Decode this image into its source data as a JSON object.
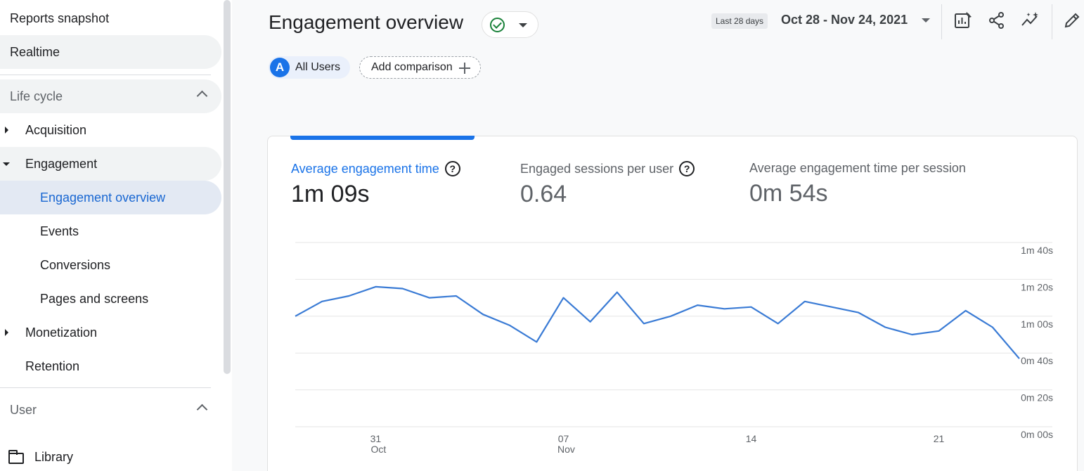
{
  "sidebar": {
    "reports_snapshot": "Reports snapshot",
    "realtime": "Realtime",
    "lifecycle": {
      "title": "Life cycle",
      "acquisition": "Acquisition",
      "engagement": "Engagement",
      "engagement_children": {
        "overview": "Engagement overview",
        "events": "Events",
        "conversions": "Conversions",
        "pages": "Pages and screens"
      },
      "monetization": "Monetization",
      "retention": "Retention"
    },
    "user": {
      "title": "User"
    },
    "library": "Library"
  },
  "header": {
    "title": "Engagement overview",
    "range_badge": "Last 28 days",
    "date_range": "Oct 28 - Nov 24, 2021",
    "status_icon": "check-circle-icon"
  },
  "toolbar": {
    "icons": [
      "customize-report-icon",
      "share-icon",
      "insights-icon",
      "edit-icon"
    ]
  },
  "comparison": {
    "avatar_letter": "A",
    "segment": "All Users",
    "add_label": "Add comparison"
  },
  "metrics": [
    {
      "label": "Average engagement time",
      "value": "1m 09s",
      "help": true,
      "selected": true
    },
    {
      "label": "Engaged sessions per user",
      "value": "0.64",
      "help": true,
      "selected": false
    },
    {
      "label": "Average engagement time per session",
      "value": "0m 54s",
      "help": false,
      "selected": false
    }
  ],
  "colors": {
    "accent": "#1a73e8",
    "success": "#188038",
    "line": "#3a7bd5"
  },
  "chart_data": {
    "type": "line",
    "x_tick_labels": [
      {
        "day": "31",
        "month": "Oct"
      },
      {
        "day": "07",
        "month": "Nov"
      },
      {
        "day": "14",
        "month": ""
      },
      {
        "day": "21",
        "month": ""
      }
    ],
    "y_tick_labels": [
      "1m 40s",
      "1m 20s",
      "1m 00s",
      "0m 40s",
      "0m 20s",
      "0m 00s"
    ],
    "ylim_seconds": [
      0,
      100
    ],
    "grid": true,
    "series": [
      {
        "x": [
          "2021-10-28",
          "2021-10-29",
          "2021-10-30",
          "2021-10-31",
          "2021-11-01",
          "2021-11-02",
          "2021-11-03",
          "2021-11-04",
          "2021-11-05",
          "2021-11-06",
          "2021-11-07",
          "2021-11-08",
          "2021-11-09",
          "2021-11-10",
          "2021-11-11",
          "2021-11-12",
          "2021-11-13",
          "2021-11-14",
          "2021-11-15",
          "2021-11-16",
          "2021-11-17",
          "2021-11-18",
          "2021-11-19",
          "2021-11-20",
          "2021-11-21",
          "2021-11-22",
          "2021-11-23",
          "2021-11-24"
        ],
        "values_seconds": [
          60,
          68,
          71,
          76,
          75,
          70,
          71,
          61,
          55,
          46,
          70,
          57,
          73,
          56,
          60,
          66,
          64,
          65,
          56,
          68,
          65,
          62,
          54,
          50,
          52,
          63,
          54,
          37
        ]
      }
    ]
  }
}
